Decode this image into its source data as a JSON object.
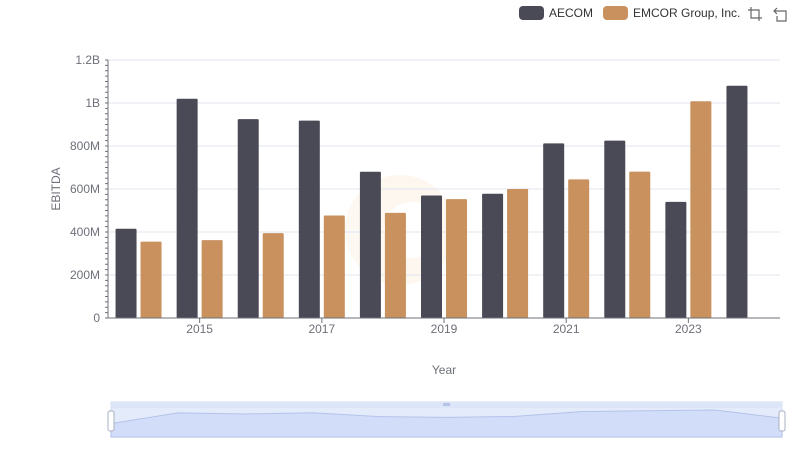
{
  "chart_data": {
    "type": "bar",
    "x": [
      2014,
      2015,
      2016,
      2017,
      2018,
      2019,
      2020,
      2021,
      2022,
      2023,
      2024
    ],
    "x_tick_labels": [
      "2015",
      "2017",
      "2019",
      "2021",
      "2023"
    ],
    "y_tick_labels": [
      "0",
      "200M",
      "400M",
      "600M",
      "800M",
      "1B",
      "1.2B"
    ],
    "xlabel": "Year",
    "ylabel": "EBITDA",
    "ylim": [
      0,
      1200000000
    ],
    "grid": true,
    "legend_position": "top-right",
    "series": [
      {
        "name": "AECOM",
        "color": "#4a4a56",
        "values": [
          415000000,
          1020000000,
          925000000,
          918000000,
          680000000,
          570000000,
          578000000,
          812000000,
          825000000,
          540000000,
          1080000000
        ]
      },
      {
        "name": "EMCOR Group, Inc.",
        "color": "#c8915e",
        "values": [
          355000000,
          362000000,
          395000000,
          477000000,
          489000000,
          553000000,
          600000000,
          645000000,
          681000000,
          1008000000,
          null
        ]
      }
    ]
  },
  "toolbox": {
    "zoom_icon": "zoom-select-icon",
    "reset_icon": "zoom-reset-icon"
  }
}
